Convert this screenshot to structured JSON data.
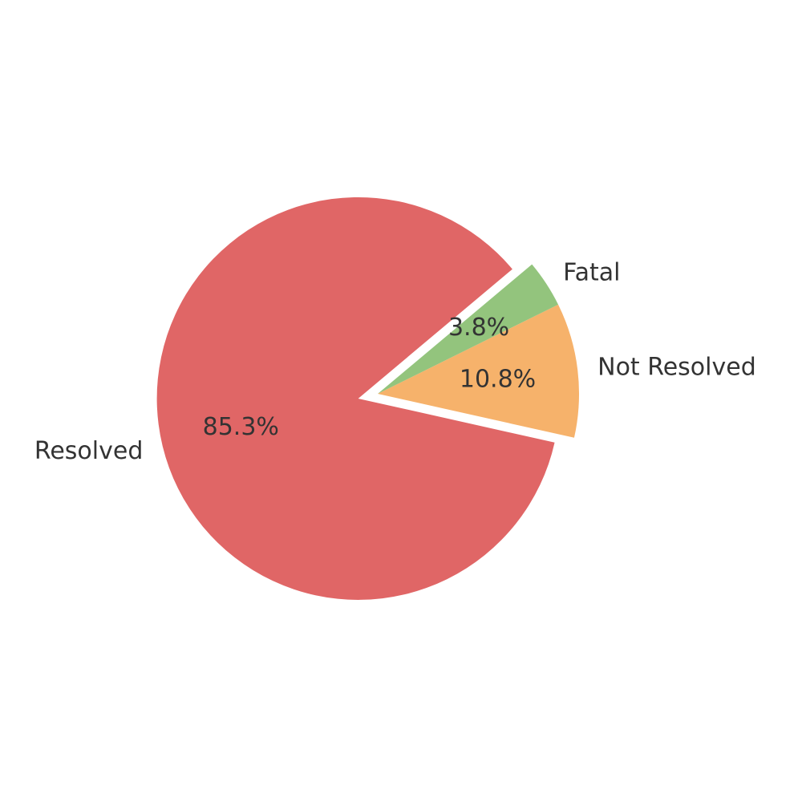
{
  "chart_data": {
    "type": "pie",
    "slices": [
      {
        "label": "Resolved",
        "value": 85.3,
        "pct_label": "85.3%",
        "color": "#e06666",
        "exploded": true
      },
      {
        "label": "Not Resolved",
        "value": 10.8,
        "pct_label": "10.8%",
        "color": "#f6b26b",
        "exploded": false
      },
      {
        "label": "Fatal",
        "value": 3.8,
        "pct_label": "3.8%",
        "color": "#93c47d",
        "exploded": false
      }
    ],
    "start_angle_deg": 40,
    "direction": "counterclockwise",
    "legend": "none"
  }
}
